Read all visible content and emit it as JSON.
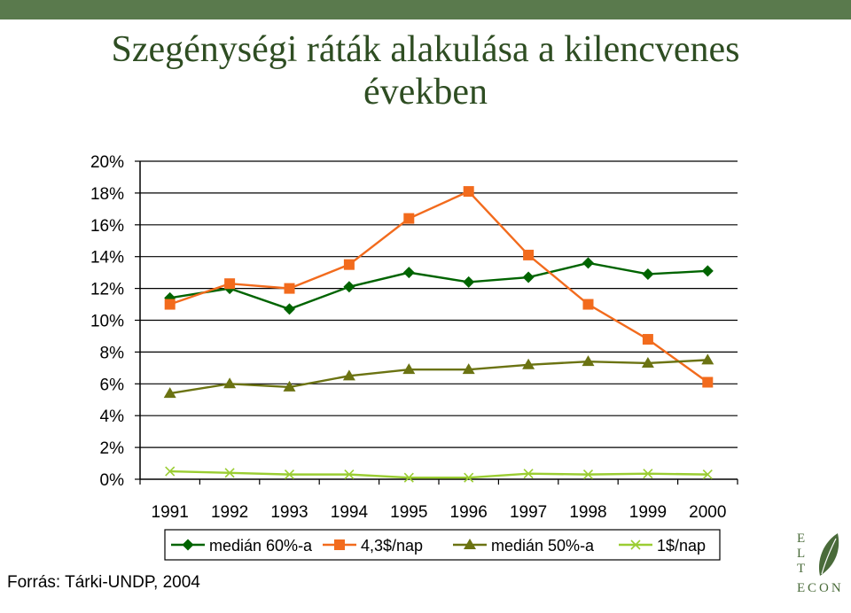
{
  "slide": {
    "title_line1": "Szegénységi ráták alakulása a kilencvenes",
    "title_line2": "években",
    "source": "Forrás: Tárki-UNDP, 2004",
    "logo_letters": [
      "E",
      "L",
      "T",
      "E",
      "CON"
    ],
    "colors": {
      "topbar": "#5a7a4d",
      "title": "#2e4d22",
      "logo": "#4a6b3a"
    }
  },
  "chart_data": {
    "type": "line",
    "title": "",
    "xlabel": "",
    "ylabel": "",
    "categories": [
      "1991",
      "1992",
      "1993",
      "1994",
      "1995",
      "1996",
      "1997",
      "1998",
      "1999",
      "2000"
    ],
    "ylim": [
      0,
      20
    ],
    "yticks": [
      0,
      2,
      4,
      6,
      8,
      10,
      12,
      14,
      16,
      18,
      20
    ],
    "ytick_labels": [
      "0%",
      "2%",
      "4%",
      "6%",
      "8%",
      "10%",
      "12%",
      "14%",
      "16%",
      "18%",
      "20%"
    ],
    "grid": true,
    "legend_position": "bottom",
    "series": [
      {
        "name": "medián 60%-a",
        "color": "#006400",
        "marker": "diamond",
        "values": [
          11.4,
          12.0,
          10.7,
          12.1,
          13.0,
          12.4,
          12.7,
          13.6,
          12.9,
          13.1
        ]
      },
      {
        "name": "4,3$/nap",
        "color": "#f26b1d",
        "marker": "square",
        "values": [
          11.0,
          12.3,
          12.0,
          13.5,
          16.4,
          18.1,
          14.1,
          11.0,
          8.8,
          6.1
        ]
      },
      {
        "name": "medián 50%-a",
        "color": "#6b7312",
        "marker": "triangle",
        "values": [
          5.4,
          6.0,
          5.8,
          6.5,
          6.9,
          6.9,
          7.2,
          7.4,
          7.3,
          7.5
        ]
      },
      {
        "name": "1$/nap",
        "color": "#9acd32",
        "marker": "x",
        "values": [
          0.5,
          0.4,
          0.3,
          0.3,
          0.1,
          0.1,
          0.35,
          0.3,
          0.35,
          0.3
        ]
      }
    ]
  }
}
